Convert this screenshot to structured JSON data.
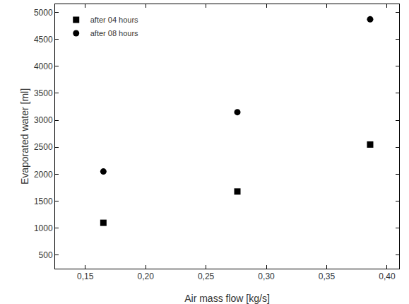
{
  "chart_data": {
    "type": "scatter",
    "x_label": "Air mass flow [kg/s]",
    "y_label": "Evaporated water [ml]",
    "x": [
      0.165,
      0.276,
      0.386
    ],
    "series": [
      {
        "name": "after 04 hours",
        "color": "#000000",
        "marker": "square",
        "values": [
          1100,
          1680,
          2550
        ]
      },
      {
        "name": "after 08 hours",
        "color": "#000000",
        "marker": "circle",
        "values": [
          2050,
          3150,
          4870
        ]
      }
    ],
    "xlim": [
      0.125,
      0.41
    ],
    "xticks": [
      {
        "value": 0.15,
        "label": "0,15"
      },
      {
        "value": 0.2,
        "label": "0,20"
      },
      {
        "value": 0.25,
        "label": "0,25"
      },
      {
        "value": 0.3,
        "label": "0,30"
      },
      {
        "value": 0.35,
        "label": "0,35"
      },
      {
        "value": 0.4,
        "label": "0,40"
      }
    ],
    "ylim": [
      250,
      5150
    ],
    "yticks": [
      500,
      1000,
      1500,
      2000,
      2500,
      3000,
      3500,
      4000,
      4500,
      5000
    ],
    "grid": false,
    "legend": "top-left"
  }
}
